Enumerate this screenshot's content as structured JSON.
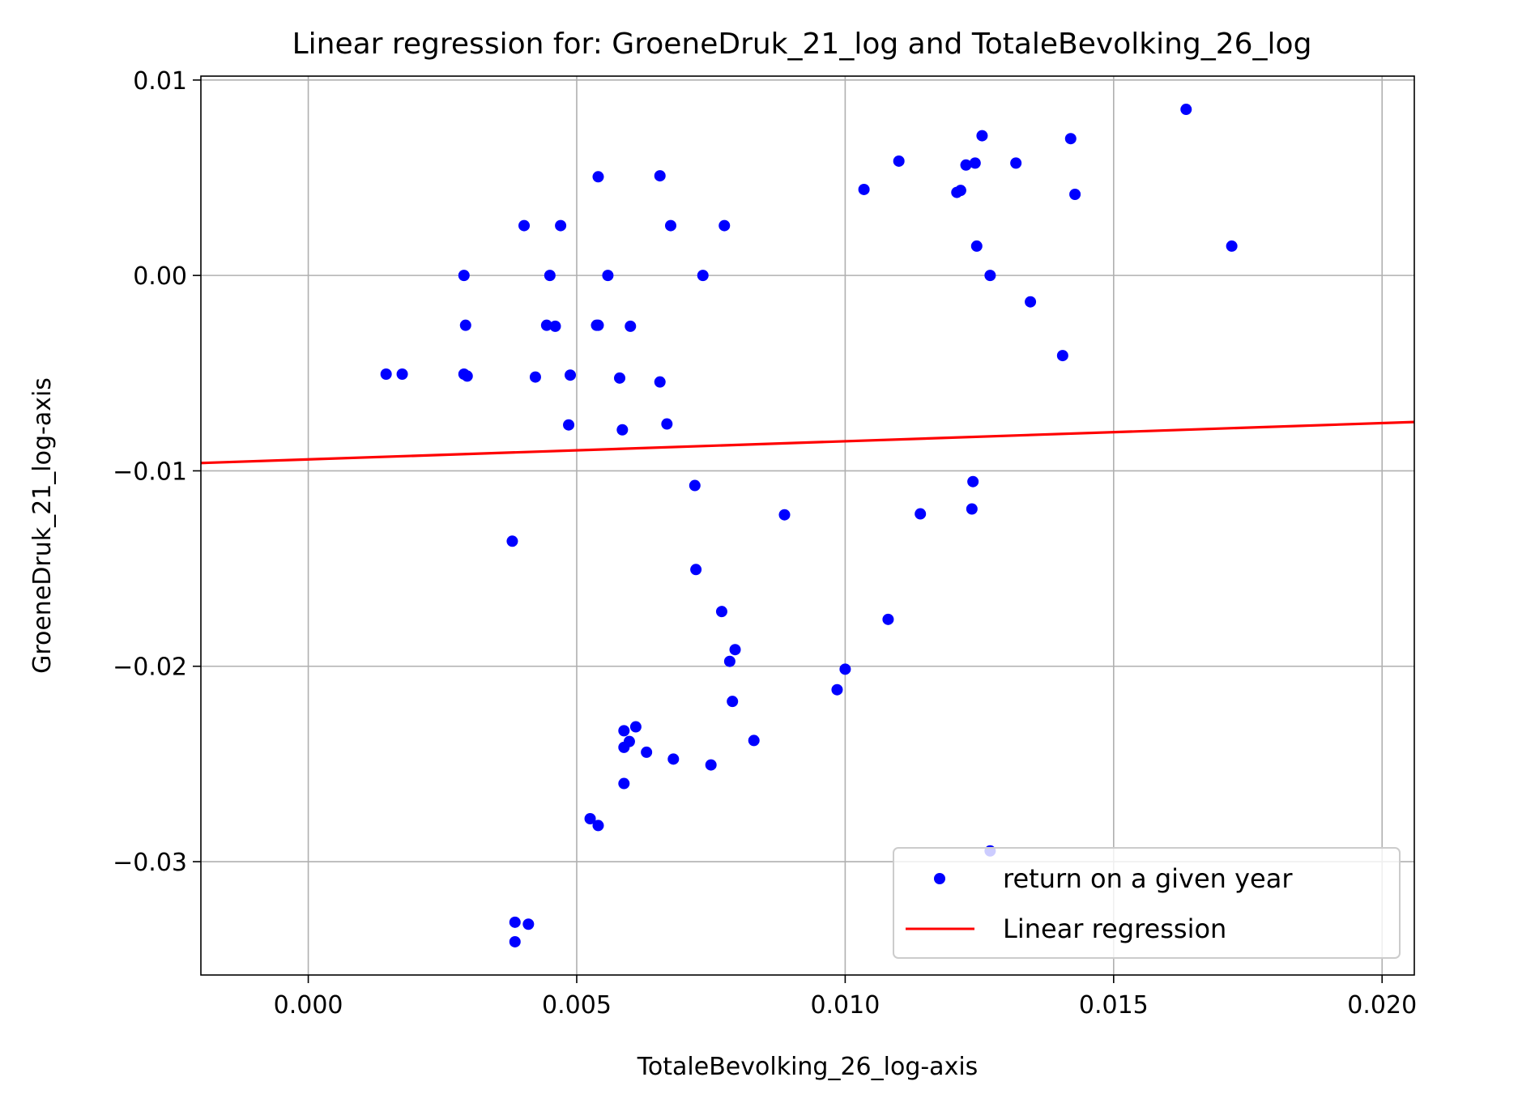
{
  "colors": {
    "points": "#0000ff",
    "regression": "#ff0000",
    "grid": "#b0b0b0",
    "axes": "#000000",
    "legend_border": "#cccccc"
  },
  "chart_data": {
    "type": "scatter",
    "title": "Linear regression for: GroeneDruk_21_log and TotaleBevolking_26_log",
    "xlabel": "TotaleBevolking_26_log-axis",
    "ylabel": "GroeneDruk_21_log-axis",
    "xlim": [
      -0.002,
      0.0206
    ],
    "ylim": [
      -0.0358,
      0.0102
    ],
    "xticks": [
      0.0,
      0.005,
      0.01,
      0.015,
      0.02
    ],
    "xtick_labels": [
      "0.000",
      "0.005",
      "0.010",
      "0.015",
      "0.020"
    ],
    "yticks": [
      -0.03,
      -0.02,
      -0.01,
      0.0,
      0.01
    ],
    "ytick_labels": [
      "−0.03",
      "−0.02",
      "−0.01",
      "0.00",
      "0.01"
    ],
    "grid": true,
    "legend_position": "lower right",
    "series": [
      {
        "name": "return on a given year",
        "kind": "scatter",
        "points": [
          [
            0.00145,
            -0.00505
          ],
          [
            0.00175,
            -0.00505
          ],
          [
            0.0029,
            0.0
          ],
          [
            0.0029,
            -0.00505
          ],
          [
            0.00293,
            -0.00255
          ],
          [
            0.00296,
            -0.00515
          ],
          [
            0.0038,
            -0.0136
          ],
          [
            0.00402,
            0.00255
          ],
          [
            0.00423,
            -0.0052
          ],
          [
            0.00444,
            -0.00255
          ],
          [
            0.0045,
            0.0
          ],
          [
            0.0046,
            -0.0026
          ],
          [
            0.0047,
            0.00255
          ],
          [
            0.00485,
            -0.00765
          ],
          [
            0.00488,
            -0.0051
          ],
          [
            0.00537,
            -0.00255
          ],
          [
            0.0054,
            -0.00255
          ],
          [
            0.0054,
            0.00505
          ],
          [
            0.00558,
            0.0
          ],
          [
            0.0058,
            -0.00525
          ],
          [
            0.00585,
            -0.0079
          ],
          [
            0.006,
            -0.0026
          ],
          [
            0.00655,
            0.0051
          ],
          [
            0.00655,
            -0.00545
          ],
          [
            0.00668,
            -0.0076
          ],
          [
            0.00675,
            0.00255
          ],
          [
            0.0072,
            -0.01075
          ],
          [
            0.00722,
            -0.01505
          ],
          [
            0.00735,
            0.0
          ],
          [
            0.0077,
            -0.0172
          ],
          [
            0.00775,
            0.00255
          ],
          [
            0.00785,
            -0.01975
          ],
          [
            0.00795,
            -0.01915
          ],
          [
            0.00887,
            -0.01225
          ],
          [
            0.00985,
            -0.0212
          ],
          [
            0.01,
            -0.02015
          ],
          [
            0.01035,
            0.0044
          ],
          [
            0.0108,
            -0.0176
          ],
          [
            0.011,
            0.00585
          ],
          [
            0.0114,
            -0.0122
          ],
          [
            0.01208,
            0.00425
          ],
          [
            0.01215,
            0.00435
          ],
          [
            0.01225,
            0.00565
          ],
          [
            0.01236,
            -0.01195
          ],
          [
            0.01238,
            -0.01055
          ],
          [
            0.01242,
            0.00575
          ],
          [
            0.01245,
            0.0015
          ],
          [
            0.01255,
            0.00715
          ],
          [
            0.0127,
            0.0
          ],
          [
            0.01318,
            0.00575
          ],
          [
            0.01345,
            -0.00135
          ],
          [
            0.01405,
            -0.0041
          ],
          [
            0.0142,
            0.007
          ],
          [
            0.01428,
            0.00415
          ],
          [
            0.01635,
            0.0085
          ],
          [
            0.0172,
            0.0015
          ],
          [
            0.00385,
            -0.0331
          ],
          [
            0.0041,
            -0.0332
          ],
          [
            0.00385,
            -0.0341
          ],
          [
            0.00525,
            -0.0278
          ],
          [
            0.0054,
            -0.02815
          ],
          [
            0.00588,
            -0.026
          ],
          [
            0.00588,
            -0.02415
          ],
          [
            0.00588,
            -0.0233
          ],
          [
            0.00598,
            -0.02385
          ],
          [
            0.0061,
            -0.0231
          ],
          [
            0.0063,
            -0.0244
          ],
          [
            0.0068,
            -0.02475
          ],
          [
            0.0075,
            -0.02505
          ],
          [
            0.0079,
            -0.0218
          ],
          [
            0.0083,
            -0.0238
          ],
          [
            0.0127,
            -0.02945
          ]
        ]
      },
      {
        "name": "Linear regression",
        "kind": "line",
        "points": [
          [
            -0.002,
            -0.0096
          ],
          [
            0.0206,
            -0.0075
          ]
        ]
      }
    ]
  }
}
